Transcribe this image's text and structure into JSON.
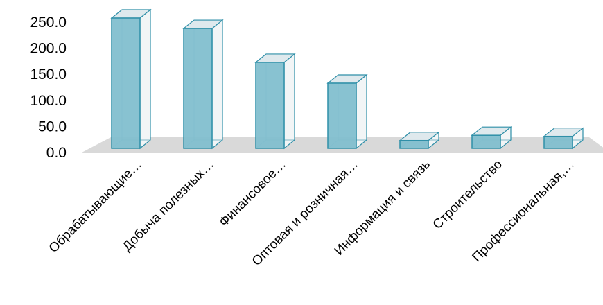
{
  "chart_data": {
    "type": "bar",
    "categories": [
      "Обрабатывающие…",
      "Добыча полезных…",
      "Финансовое…",
      "Оптовая и розничная…",
      "Информация и связь",
      "Строительство",
      "Профессиональная,…"
    ],
    "values": [
      250.0,
      230.0,
      165.0,
      125.0,
      15.0,
      25.0,
      23.0
    ],
    "yticks": [
      "0.0",
      "50.0",
      "100.0",
      "150.0",
      "200.0",
      "250.0"
    ],
    "ylim": [
      0,
      250
    ],
    "title": "",
    "xlabel": "",
    "ylabel": "",
    "grid": false,
    "legend": "none",
    "style": "3d-column",
    "colors": {
      "bar_front": "#82bfcf",
      "bar_side": "#f2f5f6",
      "bar_top": "#dfe9ed",
      "bar_edge": "#2f8fa8",
      "floor": "#d9d9d9"
    }
  }
}
